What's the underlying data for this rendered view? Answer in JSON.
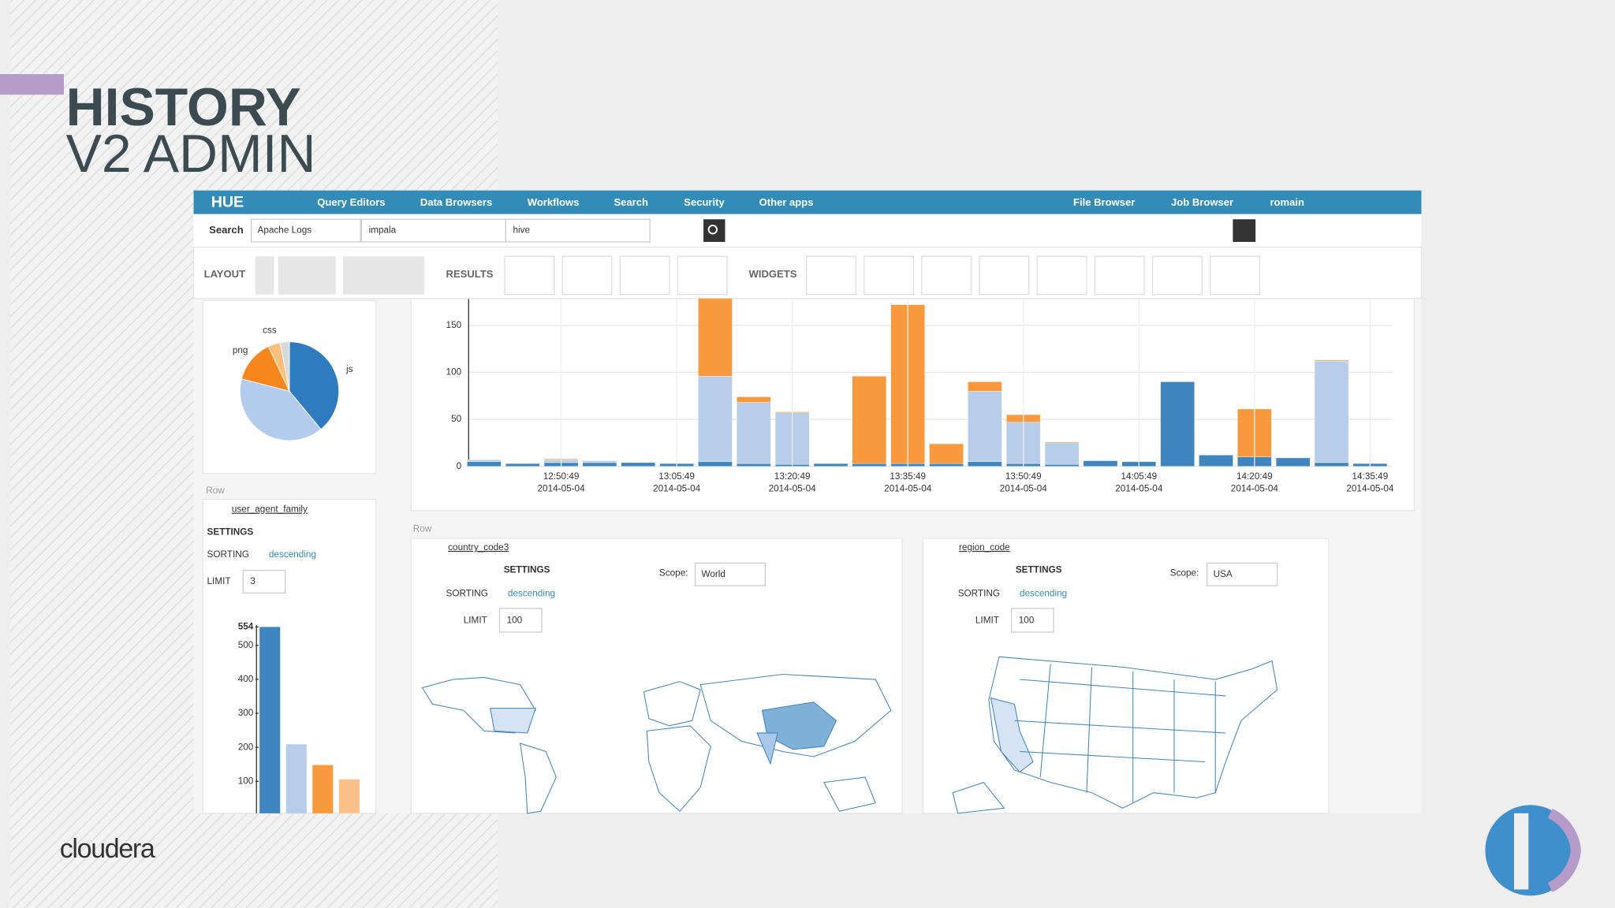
{
  "slide": {
    "title_line1": "HISTORY",
    "title_line2": "V2 ADMIN",
    "brand": "cloudera"
  },
  "navbar": {
    "menus": [
      "Query Editors",
      "Data Browsers",
      "Workflows",
      "Search",
      "Security",
      "Other apps"
    ],
    "right": [
      "File Browser",
      "Job Browser",
      "romain"
    ]
  },
  "search_bar": {
    "label": "Search",
    "collection": "Apache Logs",
    "queries": [
      "impala",
      "hive"
    ]
  },
  "toolbar": {
    "layout": "LAYOUT",
    "results": "RESULTS",
    "widgets": "WIDGETS"
  },
  "pie_chart": {
    "type": "pie",
    "labels": [
      "js",
      null,
      "png",
      "css",
      null
    ],
    "values": [
      39,
      40,
      14,
      4,
      3
    ],
    "colors": [
      "#2f7bbf",
      "#b3cbec",
      "#f7861c",
      "#fbbf7c",
      "#d9d9d9"
    ]
  },
  "timeline_chart": {
    "type": "bar",
    "stacked": true,
    "categories": [
      null,
      null,
      "12:50:49",
      null,
      null,
      "13:05:49",
      null,
      null,
      "13:20:49",
      null,
      null,
      "13:35:49",
      null,
      null,
      "13:50:49",
      null,
      null,
      "14:05:49",
      null,
      null,
      "14:20:49",
      null,
      null,
      "14:35:49"
    ],
    "category_dates": [
      null,
      null,
      "2014-05-04",
      null,
      null,
      "2014-05-04",
      null,
      null,
      "2014-05-04",
      null,
      null,
      "2014-05-04",
      null,
      null,
      "2014-05-04",
      null,
      null,
      "2014-05-04",
      null,
      null,
      "2014-05-04",
      null,
      null,
      "2014-05-04"
    ],
    "series": [
      {
        "color": "#3f86c0",
        "values": [
          5,
          3,
          4,
          4,
          4,
          3,
          5,
          3,
          2,
          3,
          3,
          3,
          3,
          5,
          3,
          2,
          6,
          5,
          90,
          12,
          10,
          9,
          4,
          3
        ]
      },
      {
        "color": "#b7cde9",
        "values": [
          2,
          0,
          3,
          2,
          0,
          0,
          91,
          65,
          55,
          0,
          0,
          0,
          0,
          75,
          44,
          23,
          0,
          0,
          0,
          0,
          0,
          0,
          108,
          0
        ]
      },
      {
        "color": "#f7993c",
        "values": [
          0,
          0,
          1,
          0,
          0,
          0,
          85,
          6,
          1,
          0,
          93,
          169,
          21,
          10,
          8,
          1,
          0,
          0,
          0,
          0,
          51,
          0,
          1,
          0
        ]
      }
    ],
    "ylim": [
      0,
      178
    ],
    "yticks": [
      0,
      50,
      100,
      150
    ],
    "grid": true
  },
  "user_agent_facet": {
    "row_label": "Row",
    "field": "user_agent_family",
    "settings": "SETTINGS",
    "sorting_label": "SORTING",
    "sorting": "descending",
    "limit_label": "LIMIT",
    "limit": 3
  },
  "facet_bar_chart": {
    "type": "bar",
    "values": [
      554,
      209,
      148,
      106
    ],
    "colors": [
      "#3f86c0",
      "#b7cde9",
      "#f7993c",
      "#fbc08a"
    ],
    "ylim": [
      0,
      560
    ],
    "yticks": [
      100,
      200,
      300,
      400,
      500,
      554
    ]
  },
  "country_facet": {
    "row_label": "Row",
    "field": "country_code3",
    "settings": "SETTINGS",
    "scope_label": "Scope:",
    "scope": "World",
    "sorting_label": "SORTING",
    "sorting": "descending",
    "limit_label": "LIMIT",
    "limit": 100
  },
  "region_facet": {
    "field": "region_code",
    "settings": "SETTINGS",
    "scope_label": "Scope:",
    "scope": "USA",
    "sorting_label": "SORTING",
    "sorting": "descending",
    "limit_label": "LIMIT",
    "limit": 100
  }
}
